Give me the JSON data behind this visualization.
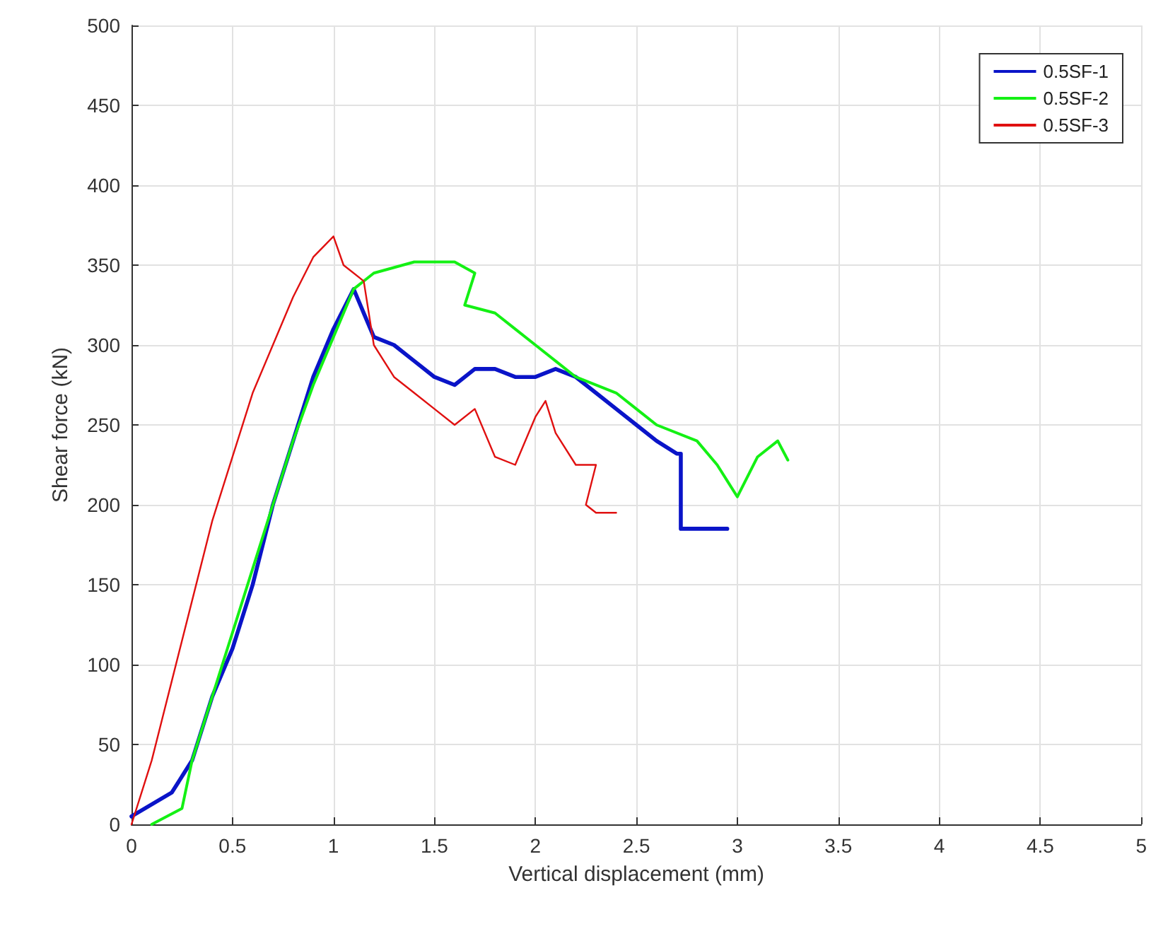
{
  "chart_data": {
    "type": "line",
    "xlabel": "Vertical displacement (mm)",
    "ylabel": "Shear force (kN)",
    "xlim": [
      0,
      5
    ],
    "xticks": [
      0,
      0.5,
      1,
      1.5,
      2,
      2.5,
      3,
      3.5,
      4,
      4.5,
      5
    ],
    "ylim": [
      0,
      500
    ],
    "yticks": [
      0,
      50,
      100,
      150,
      200,
      250,
      300,
      350,
      400,
      450,
      500
    ],
    "grid": true,
    "legend": "top right",
    "marker": "none",
    "line_style": "solid",
    "series": [
      {
        "name": "0.5SF-1",
        "color": "#0a14c8",
        "x": [
          0,
          0.2,
          0.3,
          0.4,
          0.5,
          0.6,
          0.7,
          0.8,
          0.9,
          1.0,
          1.1,
          1.15,
          1.2,
          1.3,
          1.4,
          1.5,
          1.6,
          1.7,
          1.8,
          1.9,
          2.0,
          2.1,
          2.2,
          2.3,
          2.4,
          2.5,
          2.6,
          2.7,
          2.72,
          2.72,
          2.95
        ],
        "values": [
          5,
          20,
          40,
          80,
          110,
          150,
          200,
          240,
          280,
          310,
          335,
          320,
          305,
          300,
          290,
          280,
          275,
          285,
          285,
          280,
          280,
          285,
          280,
          270,
          260,
          250,
          240,
          232,
          232,
          185,
          185
        ]
      },
      {
        "name": "0.5SF-2",
        "color": "#14f014",
        "x": [
          0.1,
          0.25,
          0.3,
          0.4,
          0.5,
          0.6,
          0.7,
          0.8,
          0.9,
          1.0,
          1.1,
          1.2,
          1.4,
          1.6,
          1.7,
          1.65,
          1.8,
          1.9,
          2.0,
          2.1,
          2.2,
          2.4,
          2.5,
          2.6,
          2.8,
          2.9,
          2.95,
          3.0,
          3.1,
          3.2,
          3.25
        ],
        "values": [
          0,
          10,
          40,
          80,
          120,
          160,
          200,
          240,
          275,
          305,
          335,
          345,
          352,
          352,
          345,
          325,
          320,
          310,
          300,
          290,
          280,
          270,
          260,
          250,
          240,
          225,
          215,
          205,
          230,
          240,
          228
        ]
      },
      {
        "name": "0.5SF-3",
        "color": "#e01010",
        "x": [
          0,
          0.05,
          0.1,
          0.2,
          0.3,
          0.4,
          0.5,
          0.6,
          0.7,
          0.8,
          0.9,
          1.0,
          1.05,
          1.15,
          1.2,
          1.3,
          1.4,
          1.5,
          1.6,
          1.7,
          1.8,
          1.9,
          2.0,
          2.05,
          2.1,
          2.2,
          2.3,
          2.25,
          2.3,
          2.4
        ],
        "values": [
          0,
          20,
          40,
          90,
          140,
          190,
          230,
          270,
          300,
          330,
          355,
          368,
          350,
          340,
          300,
          280,
          270,
          260,
          250,
          260,
          230,
          225,
          255,
          265,
          245,
          225,
          225,
          200,
          195,
          195
        ]
      }
    ]
  }
}
